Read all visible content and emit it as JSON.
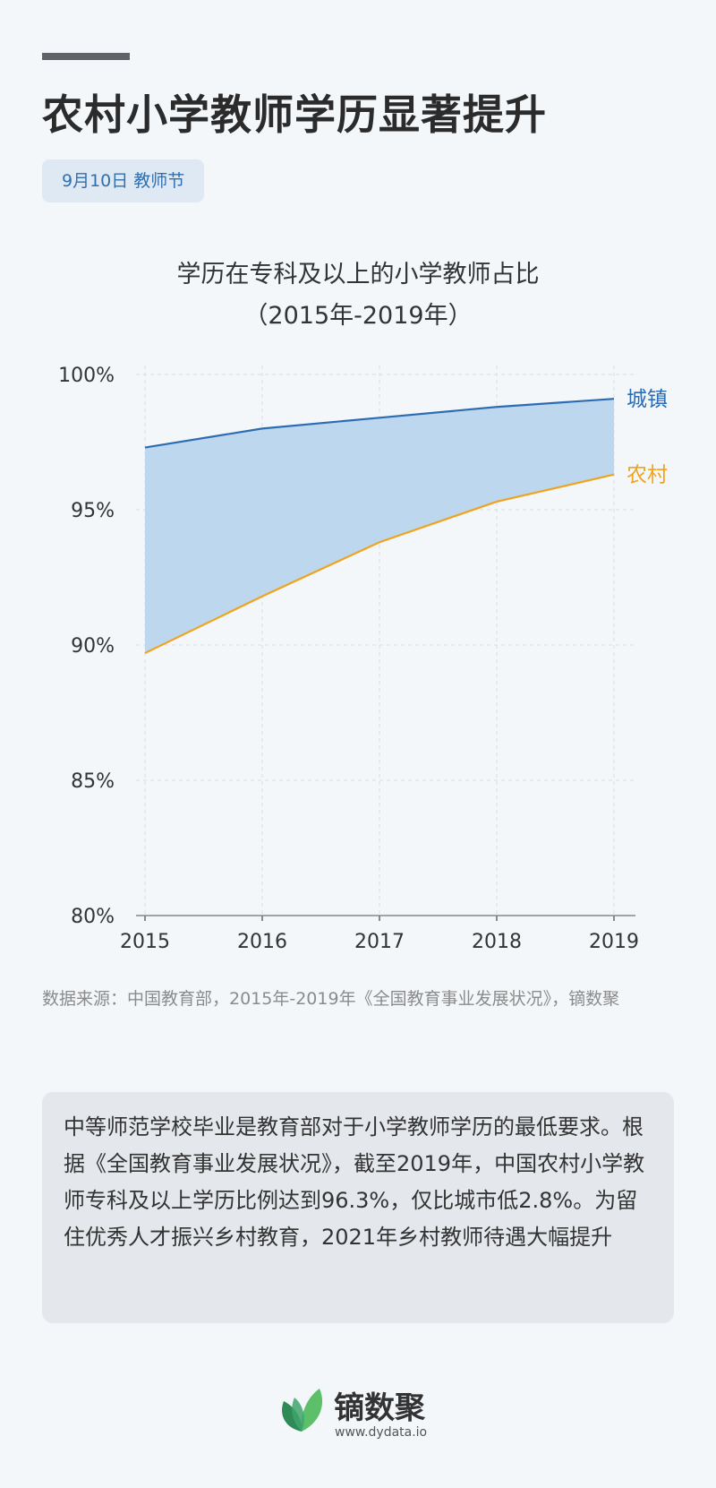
{
  "header": {
    "title": "农村小学教师学历显著提升",
    "tag": "9月10日 教师节"
  },
  "chart_data": {
    "type": "area",
    "title": "学历在专科及以上的小学教师占比",
    "subtitle": "（2015年-2019年）",
    "x": [
      "2015",
      "2016",
      "2017",
      "2018",
      "2019"
    ],
    "series": [
      {
        "name": "城镇",
        "values": [
          97.3,
          98.0,
          98.4,
          98.8,
          99.1
        ],
        "color": "#2b6cb3"
      },
      {
        "name": "农村",
        "values": [
          89.7,
          91.8,
          93.8,
          95.3,
          96.3
        ],
        "color": "#f0a31c"
      }
    ],
    "fill_between_color": "#bdd7ef",
    "ylim": [
      80,
      100
    ],
    "yticks": [
      "100%",
      "95%",
      "90%",
      "85%",
      "80%"
    ],
    "xlabel": "",
    "ylabel": "",
    "grid": true,
    "legend": "inline-right"
  },
  "source": "数据来源：中国教育部，2015年-2019年《全国教育事业发展状况》，镝数聚",
  "note": "中等师范学校毕业是教育部对于小学教师学历的最低要求。根据《全国教育事业发展状况》，截至2019年，中国农村小学教师专科及以上学历比例达到96.3%，仅比城市低2.8%。为留住优秀人才振兴乡村教育，2021年乡村教师待遇大幅提升",
  "logo": {
    "name": "镝数聚",
    "url": "www.dydata.io"
  }
}
